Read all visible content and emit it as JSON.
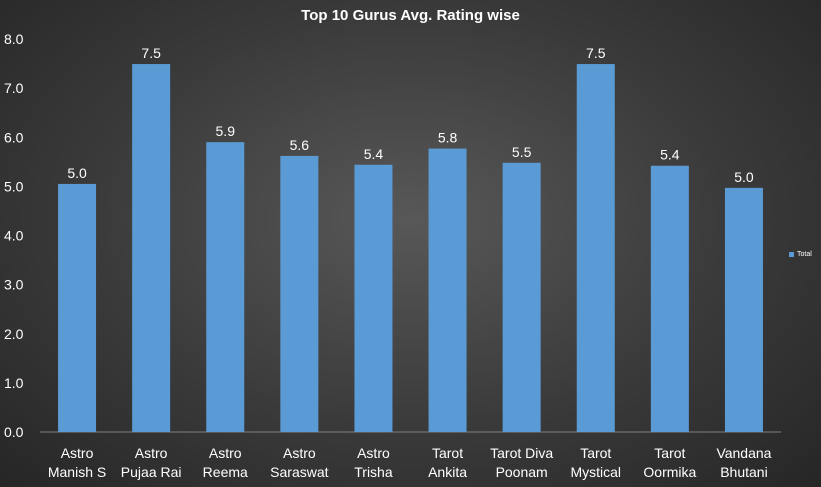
{
  "chart_data": {
    "type": "bar",
    "title": "Top 10 Gurus Avg. Rating wise",
    "categories": [
      [
        "Astro",
        "Manish S"
      ],
      [
        "Astro",
        "Pujaa Rai"
      ],
      [
        "Astro",
        "Reema"
      ],
      [
        "Astro",
        "Saraswat"
      ],
      [
        "Astro",
        "Trisha"
      ],
      [
        "Tarot",
        "Ankita"
      ],
      [
        "Tarot Diva",
        "Poonam"
      ],
      [
        "Tarot",
        "Mystical"
      ],
      [
        "Tarot",
        "Oormika"
      ],
      [
        "Vandana",
        "Bhutani"
      ]
    ],
    "series": [
      {
        "name": "Total",
        "values": [
          5.05,
          7.49,
          5.9,
          5.62,
          5.44,
          5.77,
          5.48,
          7.49,
          5.42,
          4.97
        ],
        "labels": [
          "5.0",
          "7.5",
          "5.9",
          "5.6",
          "5.4",
          "5.8",
          "5.5",
          "7.5",
          "5.4",
          "5.0"
        ]
      }
    ],
    "ylim": [
      0,
      8
    ],
    "yticks": [
      "0.0",
      "1.0",
      "2.0",
      "3.0",
      "4.0",
      "5.0",
      "6.0",
      "7.0",
      "8.0"
    ],
    "grid": false,
    "legend_position": "right",
    "colors": {
      "bar": "#5b9bd5",
      "text": "#ffffff"
    }
  }
}
